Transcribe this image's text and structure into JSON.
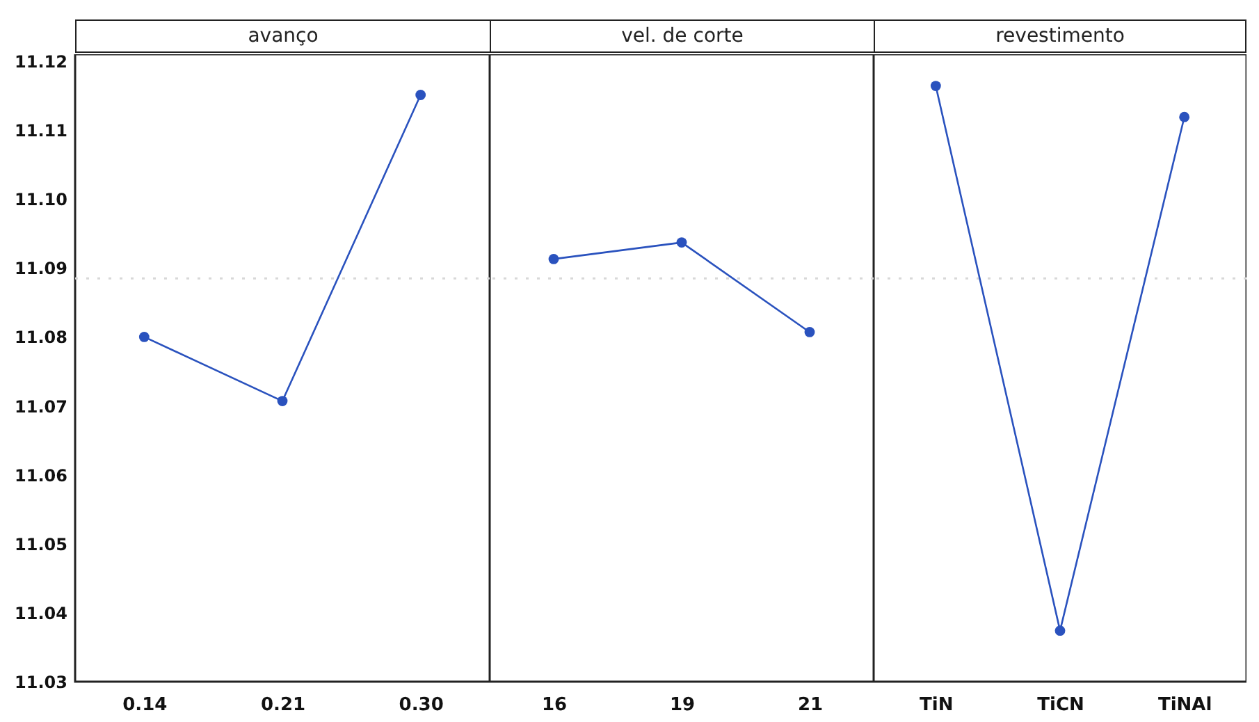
{
  "chart_data": [
    {
      "type": "line",
      "title": "avanço",
      "categories": [
        "0.14",
        "0.21",
        "0.30"
      ],
      "values": [
        11.08,
        11.0707,
        11.1151
      ],
      "color": "#2a52be",
      "marker": "circle",
      "ylim": [
        11.03,
        11.121
      ],
      "yticks": [
        11.03,
        11.04,
        11.05,
        11.06,
        11.07,
        11.08,
        11.09,
        {
          "value": 11.1,
          "label": "11.10"
        },
        11.11,
        11.12
      ],
      "ref_lines": [
        {
          "axis": "y",
          "value": 11.0885,
          "color": "#d8d8d8",
          "line_style": "dotted"
        }
      ],
      "grid": false
    },
    {
      "type": "line",
      "title": "vel. de corte",
      "categories": [
        "16",
        "19",
        "21"
      ],
      "values": [
        11.0913,
        11.0937,
        11.0807
      ],
      "color": "#2a52be",
      "marker": "circle",
      "ylim": [
        11.03,
        11.121
      ],
      "tick_labels": "x",
      "ref_lines": [
        {
          "axis": "y",
          "value": 11.0885,
          "color": "#d8d8d8",
          "line_style": "dotted"
        }
      ],
      "grid": false
    },
    {
      "type": "line",
      "title": "revestimento",
      "categories": [
        "TiN",
        "TiCN",
        "TiNAl"
      ],
      "values": [
        11.1164,
        11.0374,
        11.1119
      ],
      "color": "#2a52be",
      "marker": "circle",
      "ylim": [
        11.03,
        11.121
      ],
      "tick_labels": "x",
      "ref_lines": [
        {
          "axis": "y",
          "value": 11.0885,
          "color": "#d8d8d8",
          "line_style": "dotted"
        }
      ],
      "grid": false
    }
  ]
}
